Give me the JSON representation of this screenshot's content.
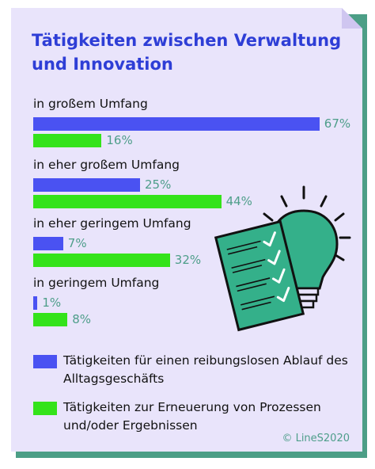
{
  "title_line1": "Tätigkeiten zwischen Verwaltung",
  "title_line2": "und Innovation",
  "copyright": "© LineS2020",
  "colors": {
    "blue": "#4a52f2",
    "green": "#34e31a",
    "card": "#e9e4fb",
    "shadow": "#4c9e86",
    "value_text": "#4e9e8a"
  },
  "chart_data": {
    "type": "bar",
    "orientation": "horizontal",
    "categories": [
      "in großem Umfang",
      "in eher großem Umfang",
      "in eher geringem Umfang",
      "in geringem Umfang"
    ],
    "series": [
      {
        "name": "Tätigkeiten für einen reibungslosen Ablauf des Alltagsgeschäfts",
        "values": [
          67,
          25,
          7,
          1
        ],
        "labels": [
          "67%",
          "25%",
          "7%",
          "1%"
        ],
        "color": "#4a52f2"
      },
      {
        "name": "Tätigkeiten zur Erneuerung von Prozessen und/oder Ergebnissen",
        "values": [
          16,
          44,
          32,
          8
        ],
        "labels": [
          "16%",
          "44%",
          "32%",
          "8%"
        ],
        "color": "#34e31a"
      }
    ],
    "unit": "%",
    "legend_position": "bottom"
  },
  "illustration": {
    "icons": [
      "lightbulb-icon",
      "checklist-icon"
    ]
  }
}
